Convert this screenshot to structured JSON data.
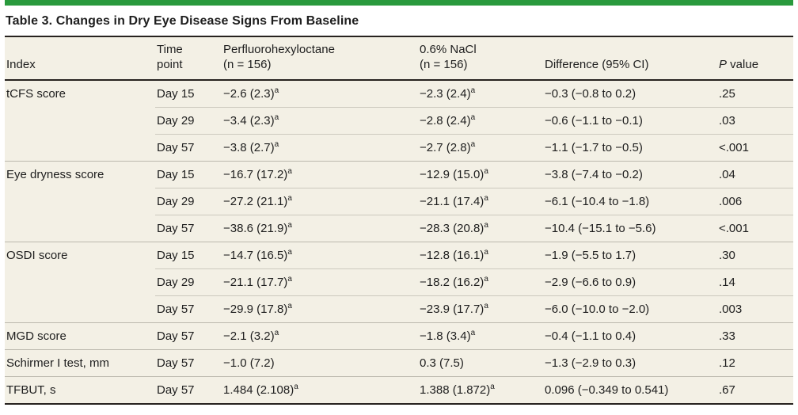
{
  "accent_color": "#2a9a3d",
  "table_background": "#f3f0e5",
  "table": {
    "title": "Table 3. Changes in Dry Eye Disease Signs From Baseline",
    "columns": {
      "index": {
        "line1": "Index",
        "line2": ""
      },
      "time": {
        "line1": "Time",
        "line2": "point"
      },
      "pfh": {
        "line1": "Perfluorohexyloctane",
        "line2": "(n = 156)"
      },
      "nacl": {
        "line1": "0.6% NaCl",
        "line2": "(n = 156)"
      },
      "diff": {
        "line1": "Difference (95% CI)",
        "line2": ""
      },
      "p": {
        "italic": "P",
        "rest": " value"
      }
    },
    "rows": [
      {
        "index": "tCFS score",
        "time": "Day 15",
        "pfh": "−2.6 (2.3)",
        "pfh_sup": "a",
        "nacl": "−2.3 (2.4)",
        "nacl_sup": "a",
        "diff": "−0.3 (−0.8 to 0.2)",
        "p": ".25"
      },
      {
        "index": "",
        "time": "Day 29",
        "pfh": "−3.4 (2.3)",
        "pfh_sup": "a",
        "nacl": "−2.8 (2.4)",
        "nacl_sup": "a",
        "diff": "−0.6 (−1.1 to −0.1)",
        "p": ".03"
      },
      {
        "index": "",
        "time": "Day 57",
        "pfh": "−3.8 (2.7)",
        "pfh_sup": "a",
        "nacl": "−2.7 (2.8)",
        "nacl_sup": "a",
        "diff": "−1.1 (−1.7 to −0.5)",
        "p": "<.001"
      },
      {
        "index": "Eye dryness score",
        "time": "Day 15",
        "pfh": "−16.7 (17.2)",
        "pfh_sup": "a",
        "nacl": "−12.9 (15.0)",
        "nacl_sup": "a",
        "diff": "−3.8 (−7.4 to −0.2)",
        "p": ".04"
      },
      {
        "index": "",
        "time": "Day 29",
        "pfh": "−27.2 (21.1)",
        "pfh_sup": "a",
        "nacl": "−21.1 (17.4)",
        "nacl_sup": "a",
        "diff": "−6.1 (−10.4 to −1.8)",
        "p": ".006"
      },
      {
        "index": "",
        "time": "Day 57",
        "pfh": "−38.6 (21.9)",
        "pfh_sup": "a",
        "nacl": "−28.3 (20.8)",
        "nacl_sup": "a",
        "diff": "−10.4 (−15.1 to −5.6)",
        "p": "<.001"
      },
      {
        "index": "OSDI score",
        "time": "Day 15",
        "pfh": "−14.7 (16.5)",
        "pfh_sup": "a",
        "nacl": "−12.8 (16.1)",
        "nacl_sup": "a",
        "diff": "−1.9 (−5.5 to 1.7)",
        "p": ".30"
      },
      {
        "index": "",
        "time": "Day 29",
        "pfh": "−21.1 (17.7)",
        "pfh_sup": "a",
        "nacl": "−18.2 (16.2)",
        "nacl_sup": "a",
        "diff": "−2.9 (−6.6 to 0.9)",
        "p": ".14"
      },
      {
        "index": "",
        "time": "Day 57",
        "pfh": "−29.9 (17.8)",
        "pfh_sup": "a",
        "nacl": "−23.9 (17.7)",
        "nacl_sup": "a",
        "diff": "−6.0 (−10.0 to −2.0)",
        "p": ".003"
      },
      {
        "index": "MGD score",
        "time": "Day 57",
        "pfh": "−2.1 (3.2)",
        "pfh_sup": "a",
        "nacl": "−1.8 (3.4)",
        "nacl_sup": "a",
        "diff": "−0.4 (−1.1 to 0.4)",
        "p": ".33"
      },
      {
        "index": "Schirmer I test, mm",
        "time": "Day 57",
        "pfh": "−1.0 (7.2)",
        "pfh_sup": "",
        "nacl": "0.3 (7.5)",
        "nacl_sup": "",
        "diff": "−1.3 (−2.9 to 0.3)",
        "p": ".12"
      },
      {
        "index": "TFBUT, s",
        "time": "Day 57",
        "pfh": "1.484 (2.108)",
        "pfh_sup": "a",
        "nacl": "1.388 (1.872)",
        "nacl_sup": "a",
        "diff": "0.096 (−0.349 to 0.541)",
        "p": ".67"
      }
    ]
  }
}
